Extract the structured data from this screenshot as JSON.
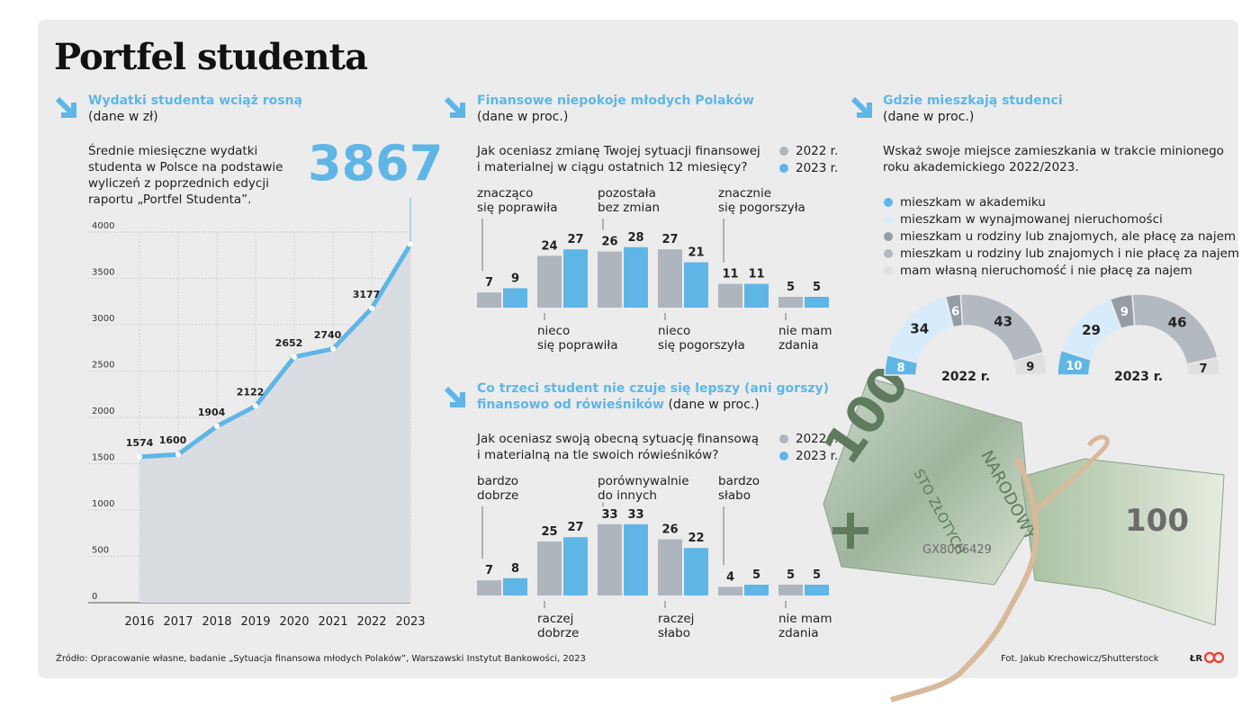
{
  "title": "Portfel studenta",
  "colors": {
    "accent": "#5fb6e6",
    "grey": "#aeb5bd",
    "lightblue": "#d7ecfa",
    "darkgrey": "#959ca4",
    "midgrey": "#b3b9c0",
    "verylight": "#e0e0e0"
  },
  "s1": {
    "title": "Wydatki studenta wciąż rosną",
    "sub": "(dane w zł)",
    "desc": [
      "Średnie miesięczne wydatki",
      "studenta w Polsce na podstawie",
      "wyliczeń z poprzednich edycji",
      "raportu „Portfel Studenta”."
    ],
    "highlight": "3867"
  },
  "s2": {
    "title": "Finansowe niepokoje młodych Polaków",
    "sub": "(dane w proc.)",
    "question": [
      "Jak oceniasz zmianę Twojej sytuacji finansowej",
      "i materialnej w ciągu ostatnich 12 miesięcy?"
    ]
  },
  "s3": {
    "title_line1": "Co trzeci student nie czuje się lepszy (ani gorszy)",
    "title_line2": "finansowo od rówieśników",
    "sub": "(dane w proc.)",
    "question": [
      "Jak oceniasz swoją obecną sytuację finansową",
      "i materialną na tle swoich rówieśników?"
    ]
  },
  "s4": {
    "title": "Gdzie mieszkają studenci",
    "sub": "(dane w proc.)",
    "question": [
      "Wskaż swoje miejsce zamieszkania w trakcie minionego",
      "roku akademickiego 2022/2023."
    ]
  },
  "legend_years": [
    "2022 r.",
    "2023 r."
  ],
  "chart_data": [
    {
      "type": "area",
      "title": "Wydatki studenta wciąż rosną",
      "x": [
        "2016",
        "2017",
        "2018",
        "2019",
        "2020",
        "2021",
        "2022",
        "2023"
      ],
      "values": [
        1574,
        1600,
        1904,
        2122,
        2652,
        2740,
        3177,
        3867
      ],
      "yticks": [
        "0",
        "500",
        "1000",
        "1500",
        "2000",
        "2500",
        "3000",
        "3500",
        "4000"
      ],
      "ylim": [
        0,
        4000
      ],
      "grid": true
    },
    {
      "type": "bar",
      "title": "Finansowe niepokoje młodych Polaków",
      "categories": [
        [
          "znacząco",
          "się poprawiła"
        ],
        [
          "nieco",
          "się poprawiła"
        ],
        [
          "pozostała",
          "bez zmian"
        ],
        [
          "nieco",
          "się pogorszyła"
        ],
        [
          "znacznie",
          "się pogorszyła"
        ],
        [
          "nie mam",
          "zdania"
        ]
      ],
      "series": [
        {
          "name": "2022 r.",
          "values": [
            7,
            24,
            26,
            27,
            11,
            5
          ]
        },
        {
          "name": "2023 r.",
          "values": [
            9,
            27,
            28,
            21,
            11,
            5
          ]
        }
      ]
    },
    {
      "type": "bar",
      "title": "Co trzeci student nie czuje się lepszy (ani gorszy) finansowo od rówieśników",
      "categories": [
        [
          "bardzo",
          "dobrze"
        ],
        [
          "raczej",
          "dobrze"
        ],
        [
          "porównywalnie",
          "do innych"
        ],
        [
          "raczej",
          "słabo"
        ],
        [
          "bardzo",
          "słabo"
        ],
        [
          "nie mam",
          "zdania"
        ]
      ],
      "series": [
        {
          "name": "2022 r.",
          "values": [
            7,
            25,
            33,
            26,
            4,
            5
          ]
        },
        {
          "name": "2023 r.",
          "values": [
            8,
            27,
            33,
            22,
            5,
            5
          ]
        }
      ]
    },
    {
      "type": "pie",
      "title": "Gdzie mieszkają studenci",
      "categories": [
        "mieszkam w akademiku",
        "mieszkam w wynajmowanej nieruchomości",
        "mieszkam u rodziny lub znajomych, ale płacę za najem",
        "mieszkam u rodziny lub znajomych i nie płacę za najem",
        "mam własną nieruchomość i nie płacę za najem"
      ],
      "series": [
        {
          "name": "2022 r.",
          "values": [
            8,
            34,
            6,
            43,
            9
          ]
        },
        {
          "name": "2023 r.",
          "values": [
            10,
            29,
            9,
            46,
            7
          ]
        }
      ]
    }
  ],
  "source": "Źródło: Opracowanie własne, badanie „Sytuacja finansowa młodych Polaków”, Warszawski Instytut Bankowości, 2023",
  "photo_credit": "Fot. Jakub Krechowicz/Shutterstock",
  "logo_text": "ŁR",
  "banknote": {
    "denomination": "100",
    "serial": "GX8006429",
    "text1": "NARODOWY",
    "text2": "STO ZŁOTYCH"
  }
}
